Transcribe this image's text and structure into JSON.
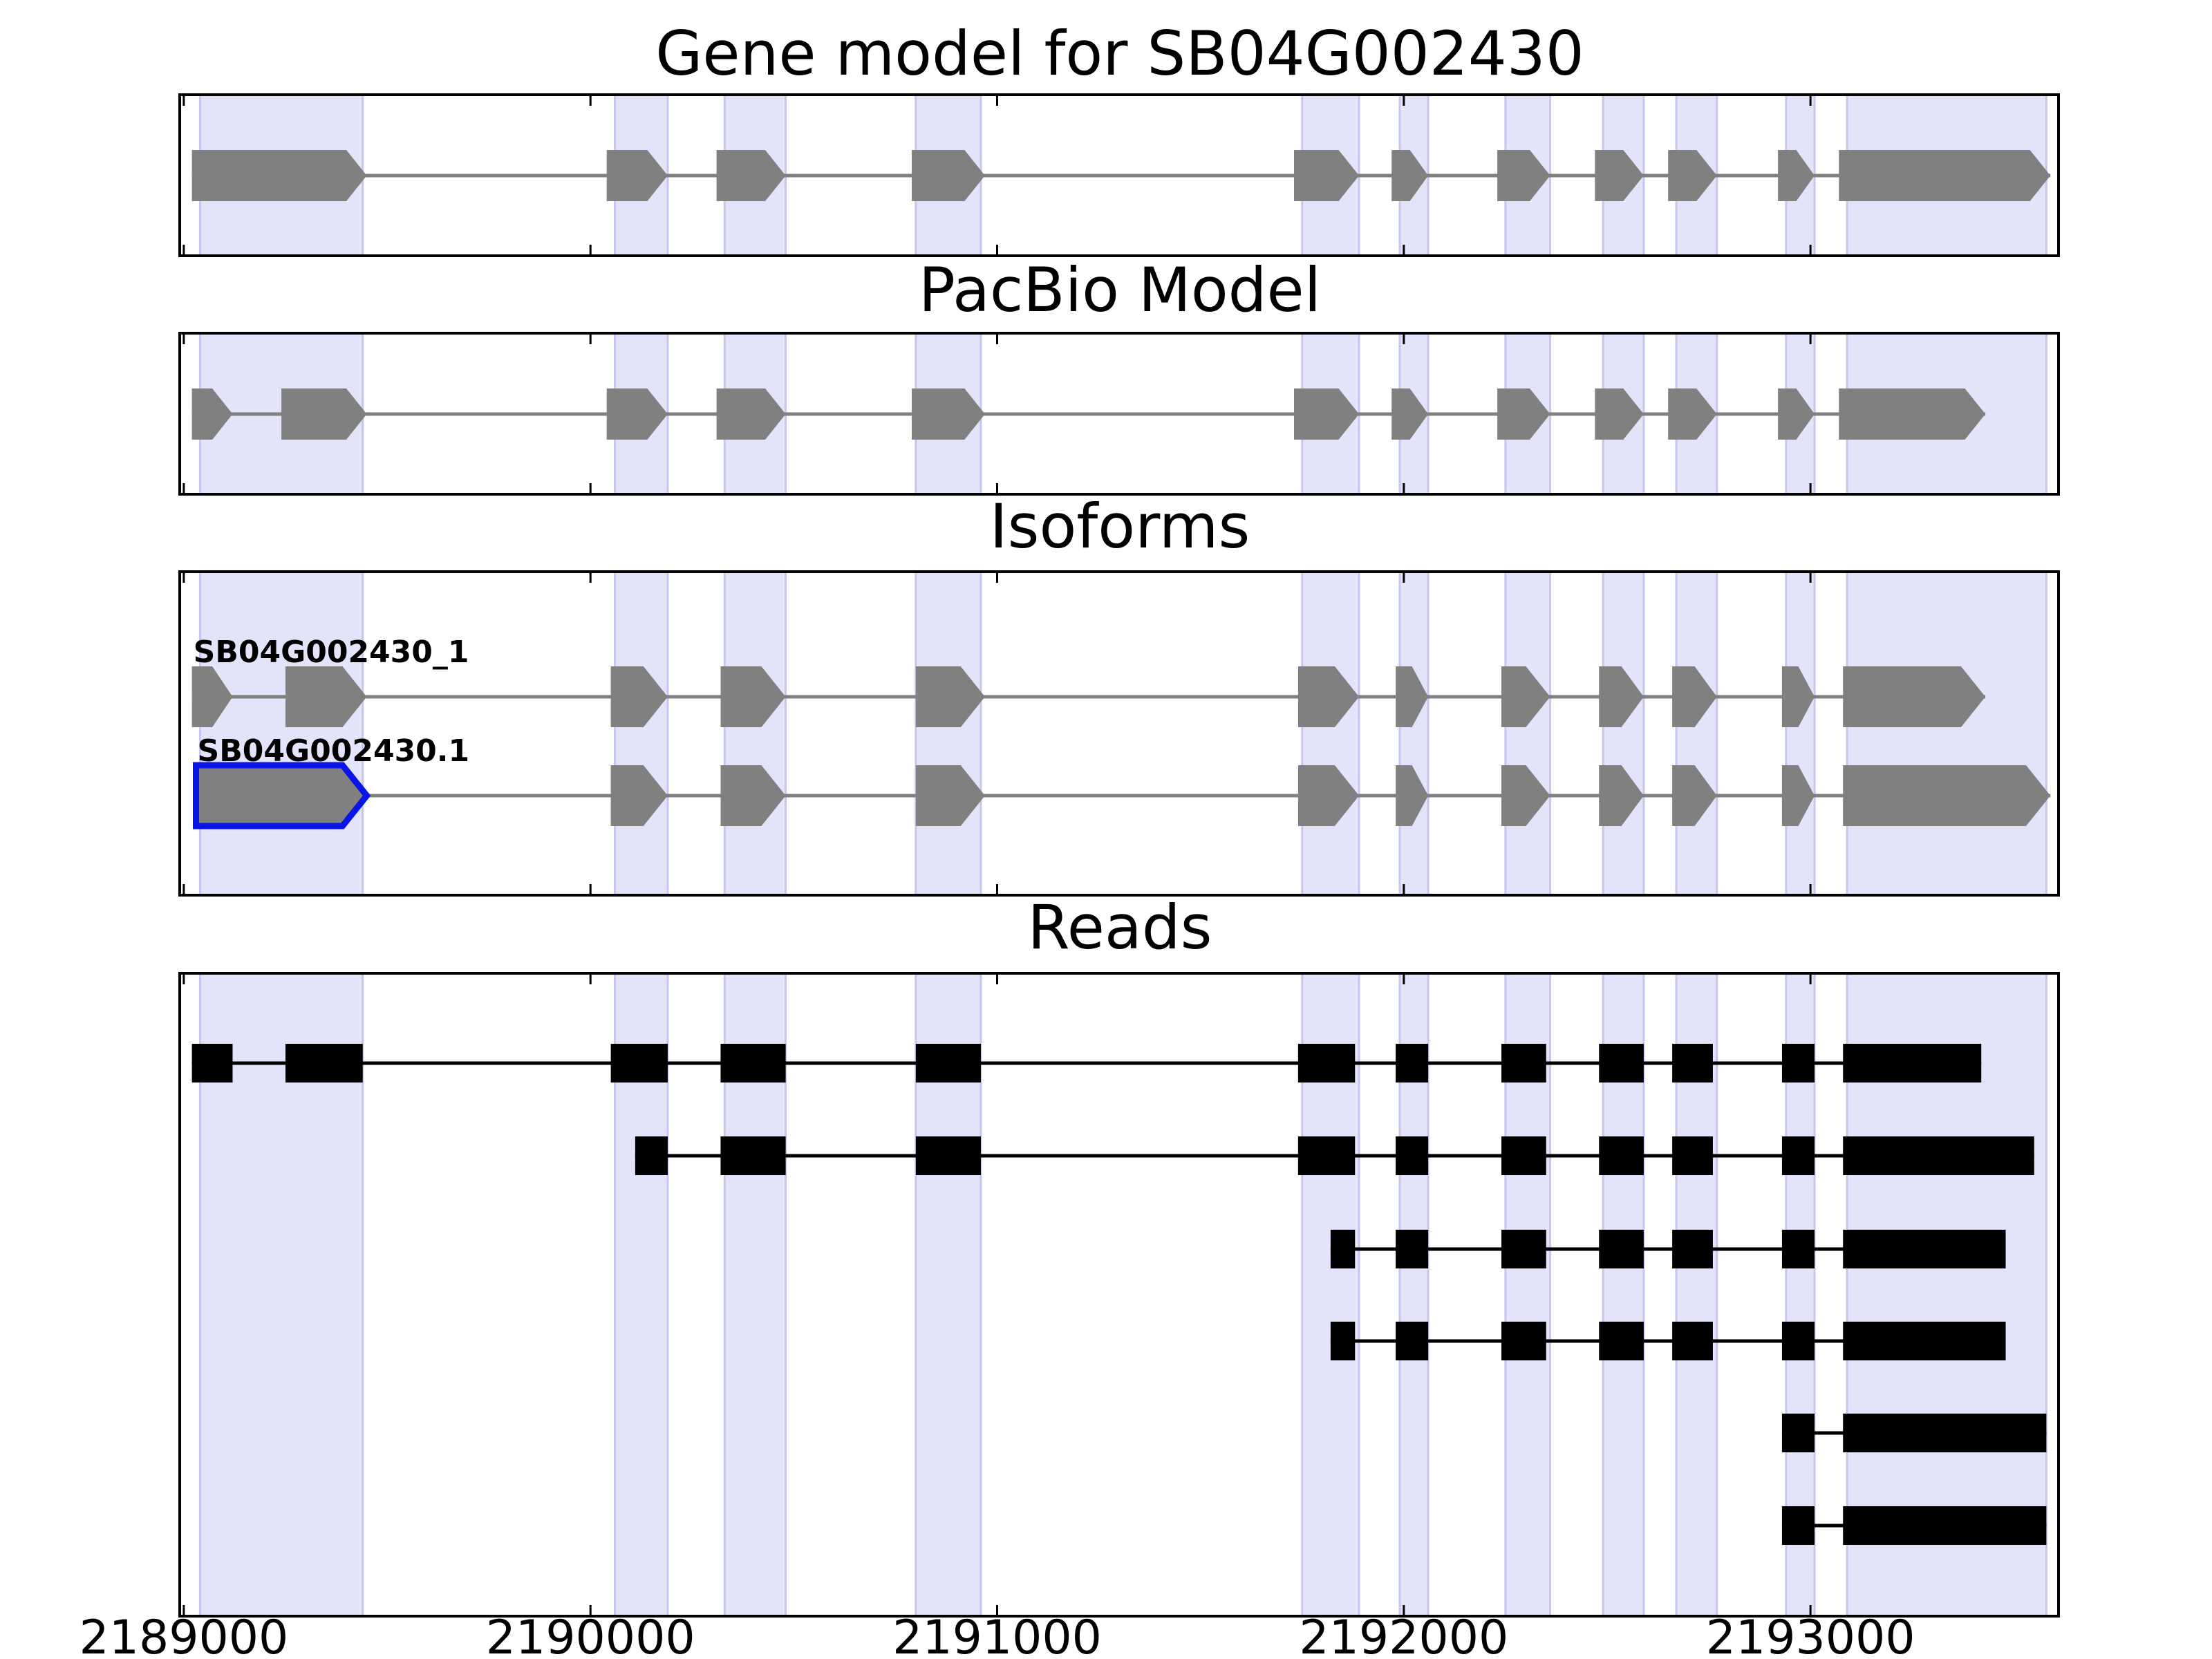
{
  "colors": {
    "background": "#ffffff",
    "highlight": "#e3e3fa",
    "highlight_edge": "#c6c6ef",
    "exon": "#808080",
    "intron": "#808080",
    "read": "#000000",
    "selected_outline": "#0a14e6",
    "axis": "#000000"
  },
  "chart_data": {
    "type": "gene-model",
    "xlim": [
      2188990,
      2193610
    ],
    "x_ticks": [
      2189000,
      2190000,
      2191000,
      2192000,
      2193000
    ],
    "x_tick_labels": [
      "2189000",
      "2190000",
      "2191000",
      "2192000",
      "2193000"
    ],
    "highlight_regions": [
      [
        2189040,
        2189440
      ],
      [
        2190060,
        2190190
      ],
      [
        2190330,
        2190480
      ],
      [
        2190800,
        2190960
      ],
      [
        2191750,
        2191890
      ],
      [
        2191990,
        2192060
      ],
      [
        2192250,
        2192360
      ],
      [
        2192490,
        2192590
      ],
      [
        2192670,
        2192770
      ],
      [
        2192940,
        2193010
      ],
      [
        2193090,
        2193580
      ]
    ],
    "panels": [
      {
        "title": "Gene model for SB04G002430",
        "strand": "+",
        "transcripts": [
          {
            "label": "",
            "exons": [
              [
                2189020,
                2189450
              ],
              [
                2190040,
                2190190
              ],
              [
                2190310,
                2190480
              ],
              [
                2190790,
                2190970
              ],
              [
                2191730,
                2191890
              ],
              [
                2191970,
                2192060
              ],
              [
                2192230,
                2192360
              ],
              [
                2192470,
                2192590
              ],
              [
                2192650,
                2192770
              ],
              [
                2192920,
                2193010
              ],
              [
                2193070,
                2193590
              ]
            ]
          }
        ]
      },
      {
        "title": "PacBio Model",
        "strand": "+",
        "transcripts": [
          {
            "label": "",
            "exons": [
              [
                2189020,
                2189120
              ],
              [
                2189240,
                2189450
              ],
              [
                2190040,
                2190190
              ],
              [
                2190310,
                2190480
              ],
              [
                2190790,
                2190970
              ],
              [
                2191730,
                2191890
              ],
              [
                2191970,
                2192060
              ],
              [
                2192230,
                2192360
              ],
              [
                2192470,
                2192590
              ],
              [
                2192650,
                2192770
              ],
              [
                2192920,
                2193010
              ],
              [
                2193070,
                2193430
              ]
            ]
          }
        ]
      },
      {
        "title": "Isoforms",
        "strand": "+",
        "transcripts": [
          {
            "label": "SB04G002430_1",
            "exons": [
              [
                2189020,
                2189120
              ],
              [
                2189250,
                2189450
              ],
              [
                2190050,
                2190190
              ],
              [
                2190320,
                2190480
              ],
              [
                2190800,
                2190970
              ],
              [
                2191740,
                2191890
              ],
              [
                2191980,
                2192060
              ],
              [
                2192240,
                2192360
              ],
              [
                2192480,
                2192590
              ],
              [
                2192660,
                2192770
              ],
              [
                2192930,
                2193010
              ],
              [
                2193080,
                2193430
              ]
            ]
          },
          {
            "label": "SB04G002430.1",
            "selected_exon": 0,
            "exons": [
              [
                2189030,
                2189450
              ],
              [
                2190050,
                2190190
              ],
              [
                2190320,
                2190480
              ],
              [
                2190800,
                2190970
              ],
              [
                2191740,
                2191890
              ],
              [
                2191980,
                2192060
              ],
              [
                2192240,
                2192360
              ],
              [
                2192480,
                2192590
              ],
              [
                2192660,
                2192770
              ],
              [
                2192930,
                2193010
              ],
              [
                2193080,
                2193590
              ]
            ]
          }
        ]
      },
      {
        "title": "Reads",
        "strand": "",
        "transcripts": [
          {
            "label": "",
            "exons": [
              [
                2189020,
                2189120
              ],
              [
                2189250,
                2189440
              ],
              [
                2190050,
                2190190
              ],
              [
                2190320,
                2190480
              ],
              [
                2190800,
                2190960
              ],
              [
                2191740,
                2191880
              ],
              [
                2191980,
                2192060
              ],
              [
                2192240,
                2192350
              ],
              [
                2192480,
                2192590
              ],
              [
                2192660,
                2192760
              ],
              [
                2192930,
                2193010
              ],
              [
                2193080,
                2193420
              ]
            ]
          },
          {
            "label": "",
            "exons": [
              [
                2190110,
                2190190
              ],
              [
                2190320,
                2190480
              ],
              [
                2190800,
                2190960
              ],
              [
                2191740,
                2191880
              ],
              [
                2191980,
                2192060
              ],
              [
                2192240,
                2192350
              ],
              [
                2192480,
                2192590
              ],
              [
                2192660,
                2192760
              ],
              [
                2192930,
                2193010
              ],
              [
                2193080,
                2193550
              ]
            ]
          },
          {
            "label": "",
            "exons": [
              [
                2191820,
                2191880
              ],
              [
                2191980,
                2192060
              ],
              [
                2192240,
                2192350
              ],
              [
                2192480,
                2192590
              ],
              [
                2192660,
                2192760
              ],
              [
                2192930,
                2193010
              ],
              [
                2193080,
                2193480
              ]
            ]
          },
          {
            "label": "",
            "exons": [
              [
                2191820,
                2191880
              ],
              [
                2191980,
                2192060
              ],
              [
                2192240,
                2192350
              ],
              [
                2192480,
                2192590
              ],
              [
                2192660,
                2192760
              ],
              [
                2192930,
                2193010
              ],
              [
                2193080,
                2193480
              ]
            ]
          },
          {
            "label": "",
            "exons": [
              [
                2192930,
                2193010
              ],
              [
                2193080,
                2193580
              ]
            ]
          },
          {
            "label": "",
            "exons": [
              [
                2192930,
                2193010
              ],
              [
                2193080,
                2193580
              ]
            ]
          }
        ]
      }
    ]
  }
}
